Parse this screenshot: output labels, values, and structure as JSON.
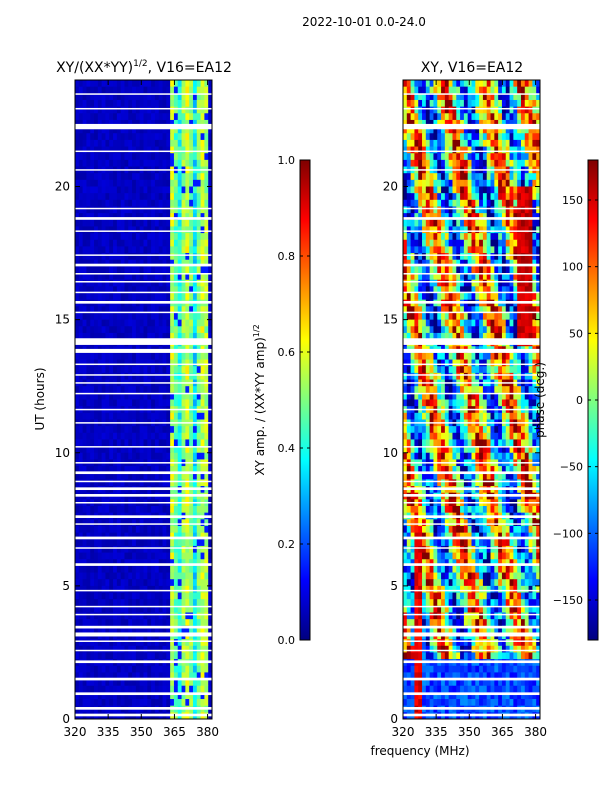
{
  "suptitle": "2022-10-01 0.0-24.0",
  "shared_xlabel": "frequency (MHz)",
  "colors": {
    "jet": [
      "#00007f",
      "#0000ff",
      "#007fff",
      "#00ffff",
      "#7fff7f",
      "#ffff00",
      "#ff7f00",
      "#ff0000",
      "#7f0000"
    ],
    "gap": "#ffffff",
    "axis": "#000000"
  },
  "chart_data": [
    {
      "type": "heatmap",
      "title": "XY/(XX*YY)",
      "title_exponent": "1/2",
      "title_suffix": ", V16=EA12",
      "xlabel": "",
      "ylabel": "UT (hours)",
      "xlim": [
        320,
        382
      ],
      "ylim": [
        0,
        24
      ],
      "xticks": [
        "320",
        "335",
        "350",
        "365",
        "380"
      ],
      "yticks": [
        "0",
        "5",
        "10",
        "15",
        "20"
      ],
      "colorbar": {
        "label": "XY amp. / (XX*YY amp)",
        "label_exponent": "1/2",
        "range": [
          0.0,
          1.0
        ],
        "ticks": [
          "0.0",
          "0.2",
          "0.4",
          "0.6",
          "0.8",
          "1.0"
        ]
      },
      "pattern": "mostly low amplitude (~0.05) below 363 MHz; bright vertical stripes (0.3-0.6) between 363 and 380 MHz"
    },
    {
      "type": "heatmap",
      "title": "XY, V16=EA12",
      "xlabel": "",
      "ylabel": "",
      "xlim": [
        320,
        382
      ],
      "ylim": [
        0,
        24
      ],
      "xticks": [
        "320",
        "335",
        "350",
        "365",
        "380"
      ],
      "yticks": [
        "0",
        "5",
        "10",
        "15",
        "20"
      ],
      "colorbar": {
        "label": "phase (deg.)",
        "range": [
          -180,
          180
        ],
        "ticks": [
          "−150",
          "−100",
          "−50",
          "0",
          "50",
          "100",
          "150"
        ]
      },
      "pattern": "noisy phase across full range with blue low-phase block below ~2.3 h and red stripe near 327 MHz"
    }
  ],
  "gaps_ut_hours": [
    [
      0.1,
      0.2
    ],
    [
      0.35,
      0.45
    ],
    [
      0.9,
      1.0
    ],
    [
      1.45,
      1.55
    ],
    [
      2.1,
      2.2
    ],
    [
      2.55,
      2.6
    ],
    [
      2.9,
      2.95
    ],
    [
      3.1,
      3.25
    ],
    [
      3.4,
      3.5
    ],
    [
      3.9,
      3.95
    ],
    [
      4.2,
      4.25
    ],
    [
      4.8,
      4.85
    ],
    [
      5.75,
      5.85
    ],
    [
      6.4,
      6.45
    ],
    [
      6.75,
      6.85
    ],
    [
      7.3,
      7.35
    ],
    [
      7.55,
      7.65
    ],
    [
      8.1,
      8.15
    ],
    [
      8.35,
      8.45
    ],
    [
      8.6,
      8.7
    ],
    [
      8.9,
      8.95
    ],
    [
      9.2,
      9.3
    ],
    [
      9.6,
      9.65
    ],
    [
      10.2,
      10.25
    ],
    [
      11.1,
      11.15
    ],
    [
      11.6,
      11.65
    ],
    [
      12.2,
      12.25
    ],
    [
      12.6,
      12.65
    ],
    [
      12.9,
      12.95
    ],
    [
      13.3,
      13.35
    ],
    [
      13.75,
      13.9
    ],
    [
      14.05,
      14.3
    ],
    [
      15.25,
      15.3
    ],
    [
      15.6,
      15.7
    ],
    [
      16.0,
      16.05
    ],
    [
      16.4,
      16.45
    ],
    [
      16.7,
      16.75
    ],
    [
      17.0,
      17.1
    ],
    [
      17.4,
      17.45
    ],
    [
      18.3,
      18.35
    ],
    [
      18.75,
      18.85
    ],
    [
      19.15,
      19.2
    ],
    [
      20.6,
      20.65
    ],
    [
      21.3,
      21.35
    ],
    [
      22.15,
      22.35
    ],
    [
      22.9,
      22.95
    ],
    [
      23.45,
      23.5
    ]
  ]
}
